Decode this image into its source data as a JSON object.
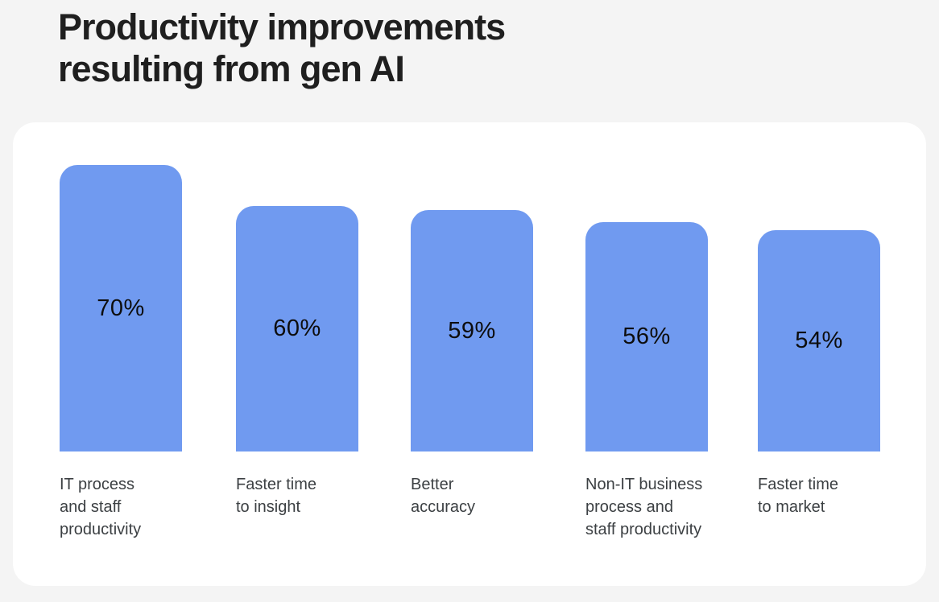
{
  "header": {
    "title_lines": [
      "Productivity improvements",
      "resulting from gen AI"
    ],
    "title_full": "Productivity improvements resulting from gen AI"
  },
  "colors": {
    "page_background": "#f4f4f4",
    "card_background": "#ffffff",
    "title": "#1f1f1f",
    "bar": "#709af0",
    "value_label": "#0d0d0d",
    "category_label": "#3c4043"
  },
  "chart_data": {
    "type": "bar",
    "title": "Productivity improvements resulting from gen AI",
    "categories": [
      "IT process and staff productivity",
      "Faster time to insight",
      "Better accuracy",
      "Non-IT business process and staff productivity",
      "Faster time to market"
    ],
    "category_lines": [
      [
        "IT process",
        "and staff",
        "productivity"
      ],
      [
        "Faster time",
        "to insight"
      ],
      [
        "Better",
        "accuracy"
      ],
      [
        "Non-IT business",
        "process and",
        "staff productivity"
      ],
      [
        "Faster time",
        "to market"
      ]
    ],
    "values": [
      70,
      60,
      59,
      56,
      54
    ],
    "value_labels": [
      "70%",
      "60%",
      "59%",
      "56%",
      "54%"
    ],
    "xlabel": "",
    "ylabel": "",
    "ylim": [
      0,
      77
    ],
    "grid": false,
    "legend": false,
    "value_label_position": "inside-center",
    "bar_corner_radius": "rounded-top"
  }
}
